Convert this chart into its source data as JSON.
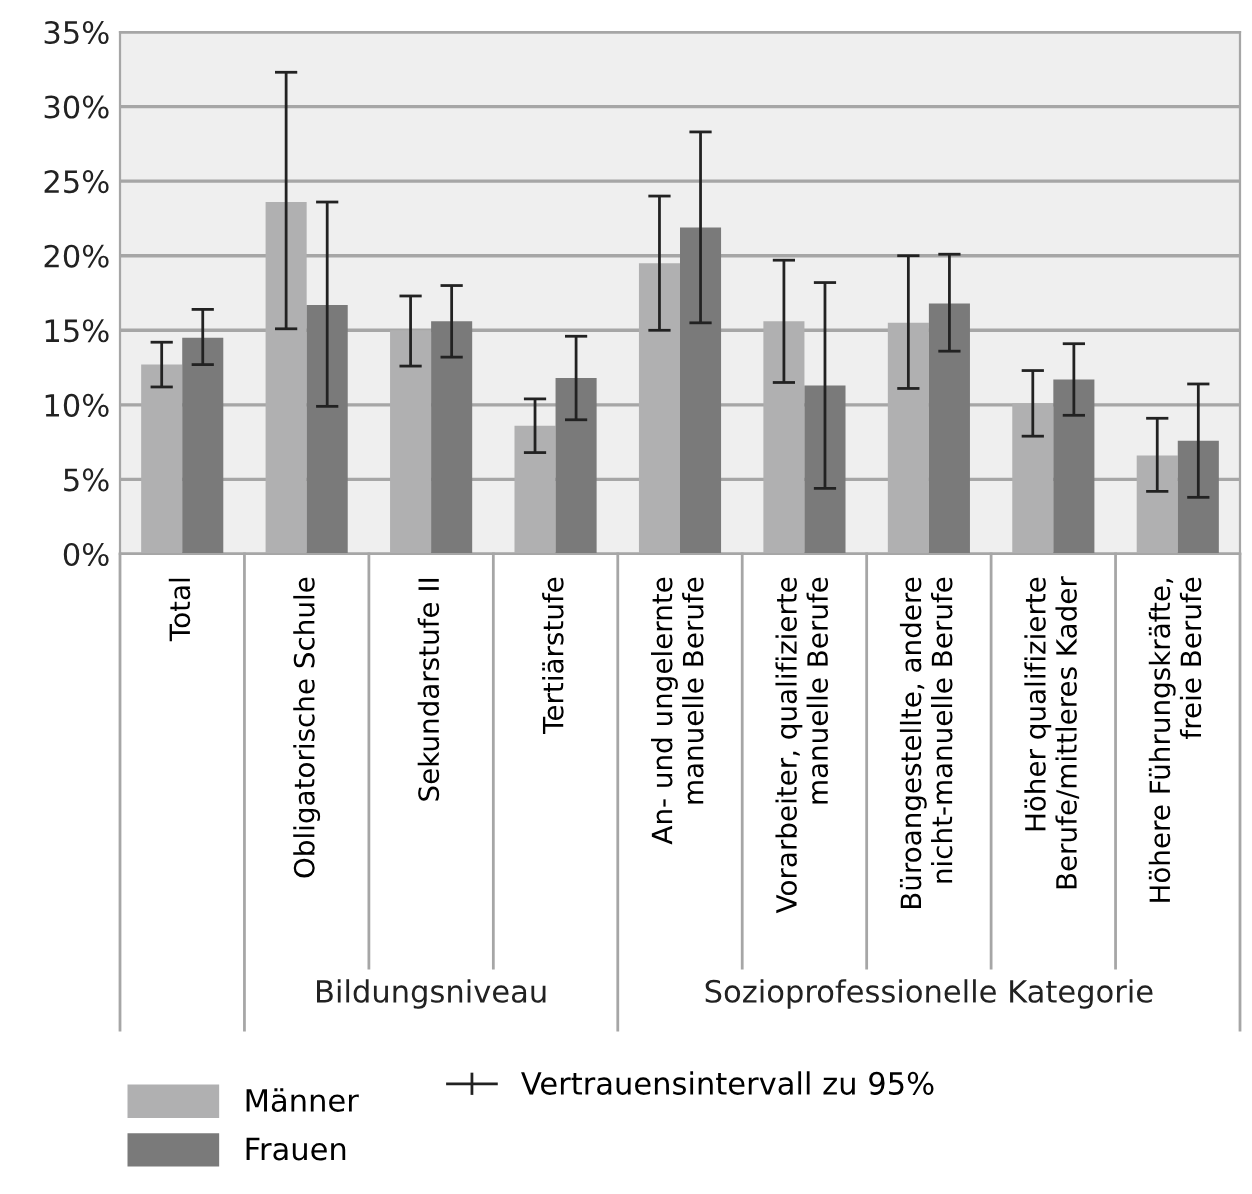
{
  "chart_data": {
    "type": "bar",
    "categories": [
      "Total",
      "Obligatorische Schule",
      "Sekundarstufe II",
      "Tertiärstufe",
      "An- und ungelernte\nmanuelle Berufe",
      "Vorarbeiter, qualifizierte\nmanuelle Berufe",
      "Büroangestellte, andere\nnicht-manuelle Berufe",
      "Höher qualifizierte\nBerufe/mittleres Kader",
      "Höhere Führungskräfte,\nfreie Berufe"
    ],
    "series": [
      {
        "name": "Männer",
        "color": "#b0b0b1",
        "values": [
          12.7,
          23.6,
          15.0,
          8.6,
          19.5,
          15.6,
          15.5,
          10.1,
          6.6
        ],
        "errors": [
          [
            11.2,
            14.2
          ],
          [
            15.1,
            32.3
          ],
          [
            12.6,
            17.3
          ],
          [
            6.8,
            10.4
          ],
          [
            15.0,
            24.0
          ],
          [
            11.5,
            19.7
          ],
          [
            11.1,
            20.0
          ],
          [
            7.9,
            12.3
          ],
          [
            4.2,
            9.1
          ]
        ]
      },
      {
        "name": "Frauen",
        "color": "#7a7a7a",
        "values": [
          14.5,
          16.7,
          15.6,
          11.8,
          21.9,
          11.3,
          16.8,
          11.7,
          7.6
        ],
        "errors": [
          [
            12.7,
            16.4
          ],
          [
            9.9,
            23.6
          ],
          [
            13.2,
            18.0
          ],
          [
            9.0,
            14.6
          ],
          [
            15.5,
            28.3
          ],
          [
            4.4,
            18.2
          ],
          [
            13.6,
            20.1
          ],
          [
            9.3,
            14.1
          ],
          [
            3.8,
            11.4
          ]
        ]
      }
    ],
    "ylim": [
      0,
      35
    ],
    "yticks": [
      {
        "value": 0,
        "label": "0%"
      },
      {
        "value": 5,
        "label": "5%"
      },
      {
        "value": 10,
        "label": "10%"
      },
      {
        "value": 15,
        "label": "15%"
      },
      {
        "value": 20,
        "label": "20%"
      },
      {
        "value": 25,
        "label": "25%"
      },
      {
        "value": 30,
        "label": "30%"
      },
      {
        "value": 35,
        "label": "35%"
      }
    ],
    "grid": "y",
    "legend": "bottom left",
    "annotations": [
      "Bildungsniveau",
      "Sozioprofessionelle Kategorie",
      "Vertrauensintervall zu 95%"
    ]
  }
}
